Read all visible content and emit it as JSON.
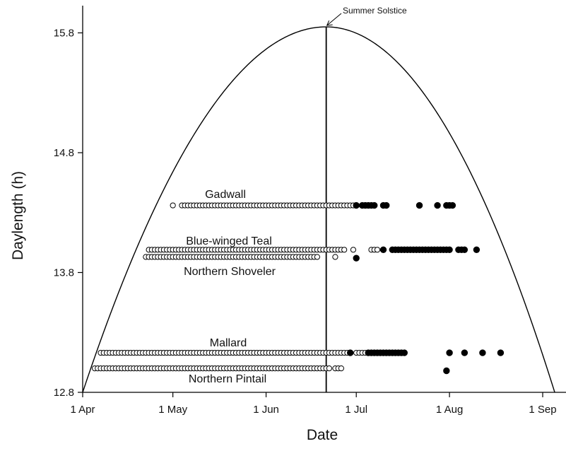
{
  "chart_data": {
    "type": "scatter",
    "title": "",
    "xlabel": "Date",
    "ylabel": "Daylength (h)",
    "x_ticks": [
      "1 Apr",
      "1 May",
      "1 Jun",
      "1 Jul",
      "1 Aug",
      "1 Sep"
    ],
    "y_ticks": [
      "12.8",
      "13.8",
      "14.8",
      "15.8"
    ],
    "xlim": [
      "1 Apr",
      "5 Sep"
    ],
    "ylim": [
      12.8,
      15.9
    ],
    "grid": false,
    "daylength_curve": {
      "start": "1 Apr",
      "end": "5 Sep",
      "peak": "21 Jun",
      "min_value": 12.8,
      "peak_value": 15.85
    },
    "annotations": [
      {
        "text": "Summer Solstice",
        "x": "21 Jun",
        "y": 15.85
      }
    ],
    "series": [
      {
        "name": "Gadwall",
        "open": {
          "y": 14.36,
          "x": [
            "1 May",
            "4 May-30 Jun"
          ]
        },
        "filled": {
          "y": 14.36,
          "x": [
            "1 Jul",
            "3 Jul-7 Jul",
            "10 Jul-11 Jul",
            "22 Jul",
            "28 Jul",
            "31 Jul-2 Aug"
          ]
        }
      },
      {
        "name": "Blue-winged Teal",
        "open": {
          "y": 13.99,
          "x": [
            "23 Apr-27 Jun",
            "30 Jun",
            "6 Jul-8 Jul"
          ]
        },
        "filled": {
          "y": 13.99,
          "x": [
            "10 Jul",
            "13 Jul-1 Aug",
            "4 Aug-6 Aug",
            "10 Aug"
          ]
        }
      },
      {
        "name": "Northern Shoveler",
        "open": {
          "y": 13.93,
          "x": [
            "22 Apr-18 Jun",
            "24 Jun"
          ]
        },
        "filled": {
          "y": 13.92,
          "x": [
            "1 Jul"
          ]
        }
      },
      {
        "name": "Mallard",
        "open": {
          "y": 13.13,
          "x": [
            "7 Apr-29 Jun",
            "1 Jul-4 Jul"
          ]
        },
        "filled": {
          "y": 13.13,
          "x": [
            "29 Jun",
            "5 Jul-17 Jul",
            "1 Aug",
            "6 Aug",
            "12 Aug",
            "18 Aug"
          ]
        }
      },
      {
        "name": "Northern Pintail",
        "open": {
          "y": 13.0,
          "x": [
            "5 Apr-22 Jun",
            "24 Jun-26 Jun"
          ]
        },
        "filled": {
          "y": 12.98,
          "x": [
            "31 Jul"
          ]
        }
      }
    ]
  }
}
